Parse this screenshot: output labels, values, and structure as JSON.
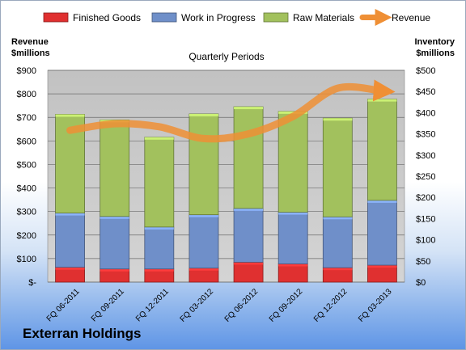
{
  "company": "Exterran Holdings",
  "chart_data": {
    "type": "bar",
    "subtype": "stacked-bar-with-line",
    "title": "Quarterly Periods",
    "left_axis_label": [
      "Revenue",
      "$millions"
    ],
    "right_axis_label": [
      "Inventory",
      "$millions"
    ],
    "categories": [
      "FQ 06-2011",
      "FQ 09-2011",
      "FQ 12-2011",
      "FQ 03-2012",
      "FQ 06-2012",
      "FQ 09-2012",
      "FQ 12-2012",
      "FQ 03-2013"
    ],
    "left_ticks": [
      "$-",
      "$100",
      "$200",
      "$300",
      "$400",
      "$500",
      "$600",
      "$700",
      "$800",
      "$900"
    ],
    "right_ticks": [
      "$0",
      "$50",
      "$100",
      "$150",
      "$200",
      "$250",
      "$300",
      "$350",
      "$400",
      "$450",
      "$500"
    ],
    "left_ylim": [
      0,
      900
    ],
    "right_ylim": [
      0,
      500
    ],
    "grid": true,
    "legend_position": "top",
    "series": [
      {
        "name": "Finished Goods",
        "axis": "right",
        "kind": "bar",
        "color": "#e03030",
        "values": [
          35,
          31,
          31,
          33,
          47,
          43,
          34,
          40
        ]
      },
      {
        "name": "Work in Progress",
        "axis": "right",
        "kind": "bar",
        "color": "#6f8fc9",
        "values": [
          128,
          124,
          99,
          126,
          127,
          122,
          120,
          153
        ]
      },
      {
        "name": "Raw Materials",
        "axis": "right",
        "kind": "bar",
        "color": "#a2c15d",
        "values": [
          233,
          228,
          212,
          238,
          240,
          238,
          233,
          239
        ]
      },
      {
        "name": "Revenue",
        "axis": "left",
        "kind": "line",
        "color": "#ef8f35",
        "values": [
          645,
          673,
          660,
          610,
          630,
          704,
          824,
          812
        ]
      }
    ]
  }
}
